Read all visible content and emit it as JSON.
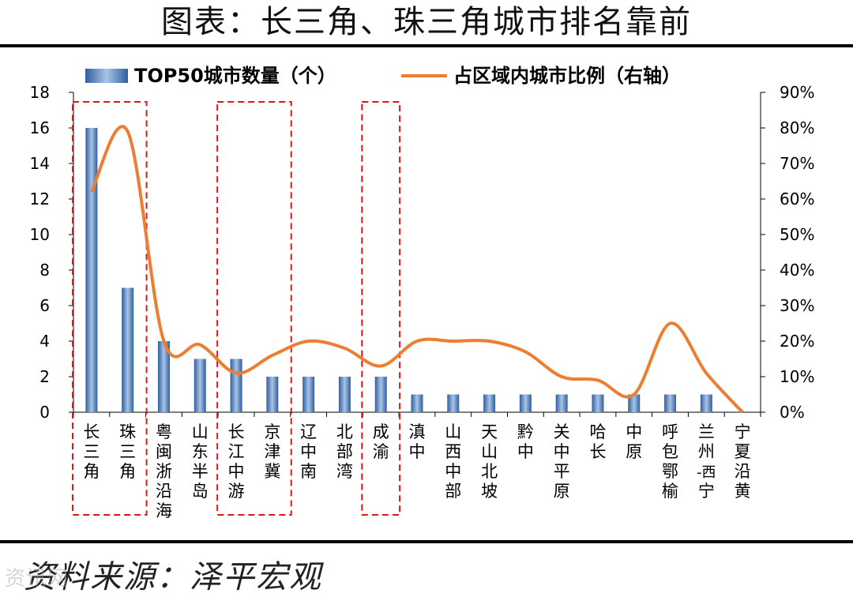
{
  "header": {
    "title": "图表：长三角、珠三角城市排名靠前"
  },
  "footer": {
    "source": "资料来源：泽平宏观",
    "watermark": "资讯网"
  },
  "colors": {
    "bar": "#4f81bd",
    "line": "#ed7d31",
    "highlight_box": "#e0151b"
  },
  "chart_data": {
    "type": "bar",
    "categories": [
      "长三角",
      "珠三角",
      "粤闽浙沿海",
      "山东半岛",
      "长江中游",
      "京津冀",
      "辽中南",
      "北部湾",
      "成渝",
      "滇中",
      "山西中部",
      "天山北坡",
      "黔中",
      "关中平原",
      "哈长",
      "中原",
      "呼包鄂榆",
      "兰州-西宁",
      "宁夏沿黄"
    ],
    "series": [
      {
        "name": "TOP50城市数量（个）",
        "type": "bar",
        "axis": "left",
        "values": [
          16,
          7,
          4,
          3,
          3,
          2,
          2,
          2,
          2,
          1,
          1,
          1,
          1,
          1,
          1,
          1,
          1,
          1,
          0
        ]
      },
      {
        "name": "占区域内城市比例（右轴）",
        "type": "line",
        "axis": "right",
        "values": [
          62,
          79,
          20,
          19,
          11,
          16,
          20,
          18,
          13,
          20,
          20,
          20,
          17,
          10,
          9,
          5,
          25,
          11,
          0
        ]
      }
    ],
    "left_axis": {
      "min": 0,
      "max": 18,
      "step": 2,
      "ticks": [
        "0",
        "2",
        "4",
        "6",
        "8",
        "10",
        "12",
        "14",
        "16",
        "18"
      ]
    },
    "right_axis": {
      "min": 0,
      "max": 90,
      "step": 10,
      "ticks": [
        "0%",
        "10%",
        "20%",
        "30%",
        "40%",
        "50%",
        "60%",
        "70%",
        "80%",
        "90%"
      ]
    },
    "legend_position": "top",
    "highlight_groups": [
      [
        "长三角",
        "珠三角"
      ],
      [
        "长江中游",
        "京津冀"
      ],
      [
        "成渝"
      ]
    ],
    "grid": false
  }
}
